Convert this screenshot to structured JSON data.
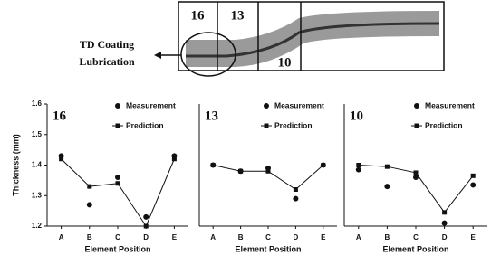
{
  "diagram": {
    "section_labels": [
      "16",
      "13",
      "10"
    ],
    "annotation": [
      "TD Coating",
      "Lubrication"
    ]
  },
  "chart_data": [
    {
      "type": "line",
      "title": "16",
      "y_label": "Thickness (mm)",
      "x_label": "Element Position",
      "categories": [
        "A",
        "B",
        "C",
        "D",
        "E"
      ],
      "ylim": [
        1.2,
        1.6
      ],
      "yticks": [
        1.2,
        1.3,
        1.4,
        1.5,
        1.6
      ],
      "series": [
        {
          "name": "Measurement",
          "color": "#111111",
          "marker": "circle",
          "line": false,
          "values": [
            1.43,
            1.27,
            1.36,
            1.23,
            1.43
          ]
        },
        {
          "name": "Prediction",
          "color": "#111111",
          "marker": "square",
          "line": true,
          "values": [
            1.42,
            1.33,
            1.34,
            1.2,
            1.42
          ]
        }
      ]
    },
    {
      "type": "line",
      "title": "13",
      "x_label": "Element Position",
      "categories": [
        "A",
        "B",
        "C",
        "D",
        "E"
      ],
      "ylim": [
        1.2,
        1.6
      ],
      "series": [
        {
          "name": "Measurement",
          "color": "#111111",
          "marker": "circle",
          "line": false,
          "values": [
            1.4,
            1.38,
            1.39,
            1.29,
            1.4
          ]
        },
        {
          "name": "Prediction",
          "color": "#111111",
          "marker": "square",
          "line": true,
          "values": [
            1.4,
            1.38,
            1.38,
            1.32,
            1.4
          ]
        }
      ]
    },
    {
      "type": "line",
      "title": "10",
      "x_label": "Element Position",
      "categories": [
        "A",
        "B",
        "C",
        "D",
        "E"
      ],
      "ylim": [
        1.2,
        1.6
      ],
      "series": [
        {
          "name": "Measurement",
          "color": "#111111",
          "marker": "circle",
          "line": false,
          "values": [
            1.385,
            1.33,
            1.36,
            1.21,
            1.335
          ]
        },
        {
          "name": "Prediction",
          "color": "#111111",
          "marker": "square",
          "line": true,
          "values": [
            1.4,
            1.395,
            1.375,
            1.245,
            1.365
          ]
        }
      ]
    }
  ]
}
